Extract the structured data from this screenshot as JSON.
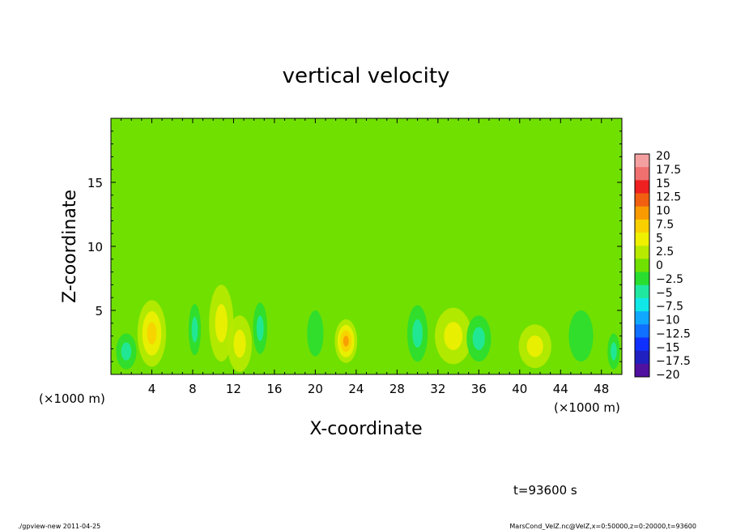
{
  "chart_data": {
    "type": "heatmap",
    "title": "vertical velocity",
    "xlabel": "X-coordinate",
    "ylabel": "Z-coordinate",
    "x_unit_left": "(×1000 m)",
    "x_unit_right": "(×1000 m)",
    "xlim": [
      0,
      50
    ],
    "ylim": [
      0,
      20
    ],
    "x_ticks": [
      4,
      8,
      12,
      16,
      20,
      24,
      28,
      32,
      36,
      40,
      44,
      48
    ],
    "y_ticks": [
      5,
      10,
      15
    ],
    "time_label": "t=93600 s",
    "colorbar": {
      "labels": [
        "20",
        "17.5",
        "15",
        "12.5",
        "10",
        "7.5",
        "5",
        "2.5",
        "0",
        "−2.5",
        "−5",
        "−7.5",
        "−10",
        "−12.5",
        "−15",
        "−17.5",
        "−20"
      ],
      "colors": [
        "#f4a0a0",
        "#f07070",
        "#ee2020",
        "#f06010",
        "#f89a00",
        "#f8d000",
        "#eef000",
        "#b8ea00",
        "#70e000",
        "#2ade30",
        "#20e8a0",
        "#10e8e8",
        "#10a8ff",
        "#1070ff",
        "#1030ff",
        "#2020c0",
        "#5010a0"
      ]
    },
    "features": [
      {
        "x": 4,
        "z": 3.2,
        "value": 7.0,
        "sx": 1.4,
        "sz": 2.6
      },
      {
        "x": 8.2,
        "z": 3.5,
        "value": -3.5,
        "sx": 0.6,
        "sz": 2.0
      },
      {
        "x": 10.8,
        "z": 4.0,
        "value": 5.0,
        "sx": 1.2,
        "sz": 3.0
      },
      {
        "x": 12.6,
        "z": 2.4,
        "value": 4.2,
        "sx": 1.2,
        "sz": 2.2
      },
      {
        "x": 14.6,
        "z": 3.6,
        "value": -2.8,
        "sx": 0.7,
        "sz": 2.0
      },
      {
        "x": 23,
        "z": 2.6,
        "value": 9.5,
        "sx": 1.1,
        "sz": 1.7
      },
      {
        "x": 20,
        "z": 3.2,
        "value": -2.2,
        "sx": 0.8,
        "sz": 1.8
      },
      {
        "x": 30,
        "z": 3.2,
        "value": -4.0,
        "sx": 1.0,
        "sz": 2.2
      },
      {
        "x": 33.5,
        "z": 3.0,
        "value": 3.0,
        "sx": 1.8,
        "sz": 2.2
      },
      {
        "x": 36,
        "z": 2.8,
        "value": -3.0,
        "sx": 1.2,
        "sz": 1.8
      },
      {
        "x": 41.5,
        "z": 2.2,
        "value": 4.5,
        "sx": 1.6,
        "sz": 1.7
      },
      {
        "x": 46,
        "z": 3.0,
        "value": -2.5,
        "sx": 1.2,
        "sz": 2.0
      },
      {
        "x": 1.5,
        "z": 1.8,
        "value": -3.0,
        "sx": 1.0,
        "sz": 1.4
      },
      {
        "x": 49.2,
        "z": 1.8,
        "value": -2.8,
        "sx": 0.6,
        "sz": 1.4
      }
    ]
  },
  "footer": {
    "left": "./gpview-new   2011-04-25",
    "right": "MarsCond_VelZ.nc@VelZ,x=0:50000,z=0:20000,t=93600"
  }
}
